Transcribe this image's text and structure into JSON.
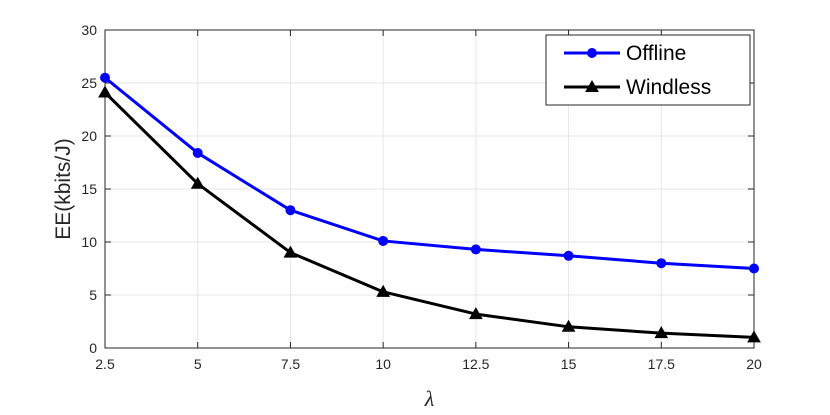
{
  "chart_data": {
    "type": "line",
    "title": "",
    "xlabel": "λ",
    "ylabel": "EE(kbits/J)",
    "x": [
      2.5,
      5,
      7.5,
      10,
      12.5,
      15,
      17.5,
      20
    ],
    "x_tick_labels": [
      "2.5",
      "5",
      "7.5",
      "10",
      "12.5",
      "15",
      "17.5",
      "20"
    ],
    "y_ticks": [
      0,
      5,
      10,
      15,
      20,
      25,
      30
    ],
    "y_tick_labels": [
      "0",
      "5",
      "10",
      "15",
      "20",
      "25",
      "30"
    ],
    "xlim": [
      2.5,
      20
    ],
    "ylim": [
      0,
      30
    ],
    "grid": true,
    "legend_position": "top-right",
    "series": [
      {
        "name": "Offline",
        "color": "#0000ff",
        "marker": "circle",
        "values": [
          25.5,
          18.4,
          13.0,
          10.1,
          9.3,
          8.7,
          8.0,
          7.5
        ]
      },
      {
        "name": "Windless",
        "color": "#000000",
        "marker": "triangle",
        "values": [
          24.1,
          15.5,
          9.0,
          5.3,
          3.2,
          2.0,
          1.4,
          1.0
        ]
      }
    ]
  }
}
